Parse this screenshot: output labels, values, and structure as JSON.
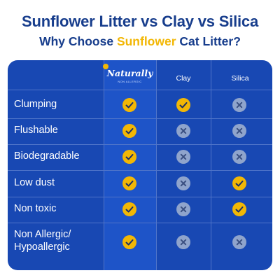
{
  "header": {
    "title": "Sunflower Litter vs Clay vs Silica",
    "subtitle_pre": "Why Choose ",
    "subtitle_highlight": "Sunflower",
    "subtitle_post": " Cat Litter?"
  },
  "columns": {
    "brand_logo": "Naturally",
    "brand_logo_tagline": "NON ALLERGIC",
    "clay": "Clay",
    "silica": "Silica"
  },
  "rows": [
    {
      "label": "Clumping",
      "naturally": "check",
      "clay": "check",
      "silica": "cross"
    },
    {
      "label": "Flushable",
      "naturally": "check",
      "clay": "cross",
      "silica": "cross"
    },
    {
      "label": "Biodegradable",
      "naturally": "check",
      "clay": "cross",
      "silica": "cross"
    },
    {
      "label": "Low dust",
      "naturally": "check",
      "clay": "cross",
      "silica": "check"
    },
    {
      "label": "Non toxic",
      "naturally": "check",
      "clay": "cross",
      "silica": "check"
    },
    {
      "label": "Non Allergic/ Hypoallergic",
      "naturally": "check",
      "clay": "cross",
      "silica": "cross"
    }
  ],
  "colors": {
    "title": "#173d8c",
    "highlight": "#f2b705",
    "card": "#1848b3",
    "check_bg": "#f2b705",
    "cross_bg": "#8fa4cc"
  }
}
